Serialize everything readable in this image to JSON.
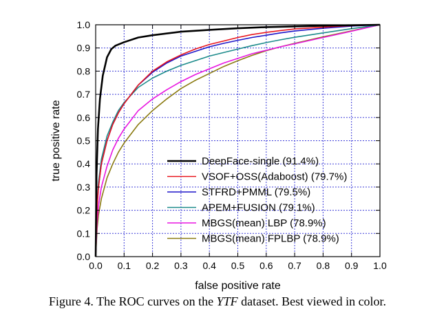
{
  "chart_data": {
    "type": "line",
    "xlabel": "false positive rate",
    "ylabel": "true positive rate",
    "xlim": [
      0.0,
      1.0
    ],
    "ylim": [
      0.0,
      1.0
    ],
    "xticks": [
      "0.0",
      "0.1",
      "0.2",
      "0.3",
      "0.4",
      "0.5",
      "0.6",
      "0.7",
      "0.8",
      "0.9",
      "1.0"
    ],
    "yticks": [
      "0.0",
      "0.1",
      "0.2",
      "0.3",
      "0.4",
      "0.5",
      "0.6",
      "0.7",
      "0.8",
      "0.9",
      "1.0"
    ],
    "grid": true,
    "legend_position": "bottom-right",
    "series": [
      {
        "name": "DeepFace-single (91.4%)",
        "color": "#000000",
        "x": [
          0,
          0.003,
          0.008,
          0.015,
          0.025,
          0.04,
          0.055,
          0.07,
          0.1,
          0.15,
          0.2,
          0.3,
          0.4,
          0.5,
          0.6,
          0.7,
          0.8,
          0.9,
          1.0
        ],
        "y": [
          0,
          0.35,
          0.55,
          0.68,
          0.78,
          0.86,
          0.895,
          0.91,
          0.925,
          0.945,
          0.955,
          0.97,
          0.978,
          0.985,
          0.99,
          0.993,
          0.996,
          0.998,
          1.0
        ]
      },
      {
        "name": "VSOF+OSS(Adaboost) (79.7%)",
        "color": "#e8141c",
        "x": [
          0,
          0.005,
          0.01,
          0.02,
          0.04,
          0.06,
          0.08,
          0.1,
          0.15,
          0.2,
          0.25,
          0.3,
          0.35,
          0.4,
          0.45,
          0.5,
          0.55,
          0.6,
          0.65,
          0.7,
          0.8,
          0.9,
          1.0
        ],
        "y": [
          0,
          0.22,
          0.3,
          0.4,
          0.5,
          0.57,
          0.62,
          0.66,
          0.74,
          0.8,
          0.84,
          0.87,
          0.895,
          0.915,
          0.93,
          0.945,
          0.958,
          0.967,
          0.975,
          0.982,
          0.99,
          0.996,
          1.0
        ]
      },
      {
        "name": "STFRD+PMML (79.5%)",
        "color": "#1c14c8",
        "x": [
          0,
          0.005,
          0.01,
          0.02,
          0.04,
          0.06,
          0.08,
          0.1,
          0.15,
          0.2,
          0.25,
          0.3,
          0.35,
          0.4,
          0.45,
          0.5,
          0.55,
          0.6,
          0.65,
          0.7,
          0.8,
          0.9,
          1.0
        ],
        "y": [
          0,
          0.22,
          0.3,
          0.4,
          0.5,
          0.57,
          0.62,
          0.66,
          0.74,
          0.795,
          0.835,
          0.865,
          0.885,
          0.905,
          0.92,
          0.933,
          0.945,
          0.955,
          0.965,
          0.973,
          0.985,
          0.994,
          1.0
        ]
      },
      {
        "name": "APEM+FUSION (79.1%)",
        "color": "#1a8a8a",
        "x": [
          0,
          0.005,
          0.01,
          0.02,
          0.04,
          0.06,
          0.08,
          0.1,
          0.15,
          0.2,
          0.25,
          0.3,
          0.35,
          0.4,
          0.45,
          0.5,
          0.55,
          0.6,
          0.65,
          0.7,
          0.8,
          0.9,
          1.0
        ],
        "y": [
          0,
          0.24,
          0.32,
          0.42,
          0.52,
          0.58,
          0.63,
          0.665,
          0.73,
          0.77,
          0.8,
          0.825,
          0.845,
          0.865,
          0.88,
          0.895,
          0.91,
          0.923,
          0.935,
          0.946,
          0.965,
          0.983,
          1.0
        ]
      },
      {
        "name": "MBGS(mean) LBP (78.9%)",
        "color": "#e814e0",
        "x": [
          0,
          0.005,
          0.01,
          0.02,
          0.04,
          0.06,
          0.08,
          0.1,
          0.15,
          0.2,
          0.25,
          0.3,
          0.35,
          0.4,
          0.45,
          0.5,
          0.55,
          0.6,
          0.65,
          0.7,
          0.8,
          0.9,
          1.0
        ],
        "y": [
          0,
          0.15,
          0.22,
          0.3,
          0.39,
          0.46,
          0.51,
          0.55,
          0.63,
          0.68,
          0.72,
          0.755,
          0.785,
          0.81,
          0.835,
          0.855,
          0.875,
          0.89,
          0.905,
          0.918,
          0.945,
          0.972,
          1.0
        ]
      },
      {
        "name": "MBGS(mean) FPLBP (78.9%)",
        "color": "#8a7a10",
        "x": [
          0,
          0.005,
          0.01,
          0.02,
          0.04,
          0.06,
          0.08,
          0.1,
          0.15,
          0.2,
          0.25,
          0.3,
          0.35,
          0.4,
          0.45,
          0.5,
          0.55,
          0.6,
          0.65,
          0.7,
          0.8,
          0.9,
          1.0
        ],
        "y": [
          0,
          0.12,
          0.18,
          0.25,
          0.34,
          0.4,
          0.45,
          0.49,
          0.57,
          0.63,
          0.68,
          0.725,
          0.76,
          0.79,
          0.82,
          0.845,
          0.868,
          0.888,
          0.905,
          0.92,
          0.948,
          0.974,
          1.0
        ]
      }
    ]
  },
  "caption": {
    "prefix": "Figure 4.",
    "text_before": "The ROC curves on the",
    "italic": "YTF",
    "text_after": "dataset. Best viewed in color."
  }
}
